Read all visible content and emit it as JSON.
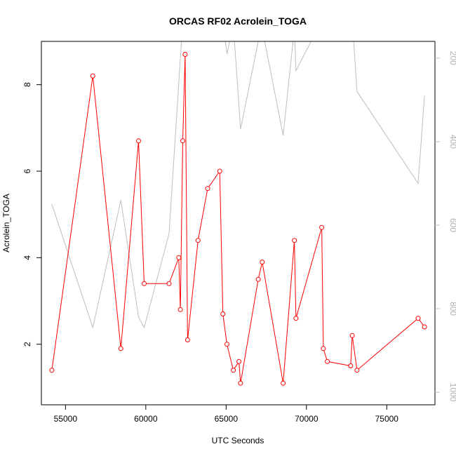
{
  "chart_data": {
    "type": "line",
    "title": "ORCAS RF02 Acrolein_TOGA",
    "xlabel": "UTC Seconds",
    "ylabel": "Acrolein_TOGA",
    "xlim": [
      53500,
      78000
    ],
    "ylim": [
      0.6,
      9.0
    ],
    "x_ticks": [
      55000,
      60000,
      65000,
      70000,
      75000
    ],
    "y_ticks": [
      2,
      4,
      6,
      8
    ],
    "secondary_y": {
      "reversed": true,
      "lim": [
        1030,
        160
      ],
      "ticks": [
        200,
        400,
        600,
        800,
        1000
      ],
      "color": "#bebebe"
    },
    "grid": false,
    "series": [
      {
        "color": "#ff0000",
        "marker": "open-circle",
        "x": [
          54150,
          56700,
          58450,
          59550,
          59900,
          61450,
          62050,
          62150,
          62300,
          62450,
          62600,
          63250,
          63850,
          64600,
          64800,
          65050,
          65450,
          65800,
          65900,
          67000,
          67250,
          68550,
          69250,
          69350,
          70950,
          71050,
          71300,
          72750,
          72850,
          73150,
          76950,
          77350
        ],
        "y": [
          1.4,
          8.2,
          1.9,
          6.7,
          3.4,
          3.4,
          4.0,
          2.8,
          6.7,
          8.7,
          2.1,
          4.4,
          5.6,
          6.0,
          2.7,
          2.0,
          1.4,
          1.6,
          1.1,
          3.5,
          3.9,
          1.1,
          4.4,
          2.6,
          4.7,
          1.9,
          1.6,
          1.5,
          2.2,
          1.4,
          2.6,
          2.4
        ]
      },
      {
        "color": "#bebebe",
        "axis": "secondary",
        "x": [
          54150,
          56700,
          58450,
          59550,
          59900,
          61450,
          62150,
          62300,
          62450,
          62600,
          63250,
          63850,
          64600,
          64800,
          65050,
          65450,
          65900,
          67000,
          67250,
          68550,
          69250,
          69350,
          70950,
          71050,
          71300,
          72750,
          72850,
          73150,
          76950,
          77350
        ],
        "y": [
          550,
          845,
          540,
          820,
          845,
          620,
          200,
          120,
          60,
          70,
          90,
          100,
          80,
          110,
          190,
          120,
          370,
          160,
          130,
          385,
          130,
          230,
          110,
          140,
          160,
          130,
          110,
          280,
          500,
          290
        ]
      }
    ]
  }
}
